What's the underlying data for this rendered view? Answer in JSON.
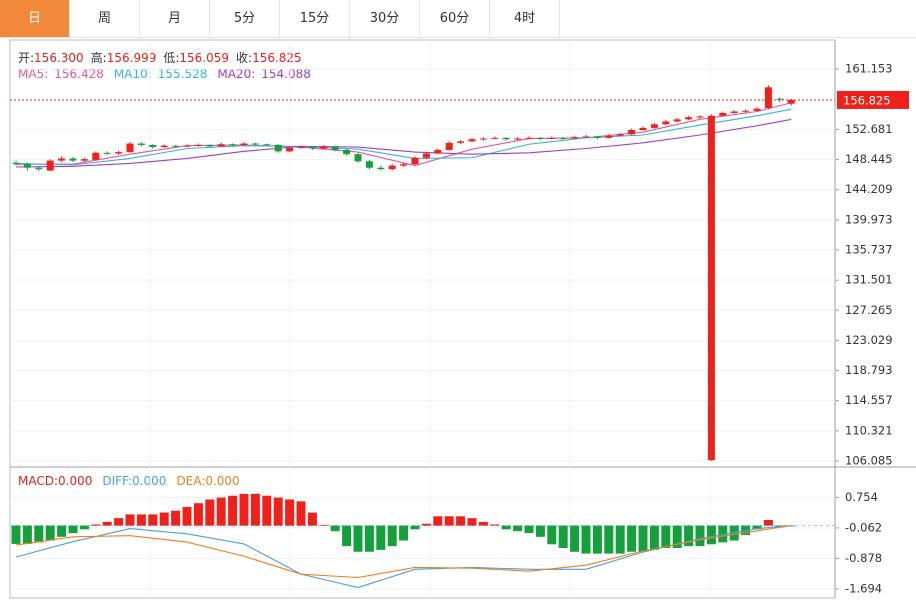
{
  "tabs": {
    "items": [
      "日",
      "周",
      "月",
      "5分",
      "15分",
      "30分",
      "60分",
      "4时"
    ],
    "active": 0
  },
  "chart_data": [
    {
      "type": "candlestick",
      "quote": [
        {
          "label": "开:",
          "value": "156.300"
        },
        {
          "label": "高:",
          "value": "156.999"
        },
        {
          "label": "低:",
          "value": "156.059"
        },
        {
          "label": "收:",
          "value": "156.825"
        }
      ],
      "quote_color": "#e8211a",
      "up_color": "#f0211a",
      "down_color": "#14a03a",
      "candles": [
        [
          148.0,
          148.3,
          147.6,
          147.8
        ],
        [
          147.8,
          148.0,
          146.9,
          147.3
        ],
        [
          147.3,
          147.5,
          146.8,
          147.1
        ],
        [
          146.9,
          148.5,
          146.8,
          148.3
        ],
        [
          148.3,
          148.9,
          148.1,
          148.6
        ],
        [
          148.6,
          148.8,
          148.1,
          148.3
        ],
        [
          148.3,
          148.7,
          148.1,
          148.5
        ],
        [
          148.4,
          149.6,
          148.3,
          149.4
        ],
        [
          149.4,
          149.6,
          149.1,
          149.3
        ],
        [
          149.3,
          149.7,
          149.1,
          149.5
        ],
        [
          149.5,
          150.9,
          149.4,
          150.7
        ],
        [
          150.7,
          150.9,
          150.3,
          150.5
        ],
        [
          150.5,
          150.6,
          150.0,
          150.2
        ],
        [
          150.2,
          150.6,
          150.1,
          150.4
        ],
        [
          150.4,
          150.5,
          150.1,
          150.3
        ],
        [
          150.3,
          150.6,
          150.2,
          150.4
        ],
        [
          150.4,
          150.7,
          150.3,
          150.5
        ],
        [
          150.5,
          150.6,
          150.2,
          150.3
        ],
        [
          150.3,
          150.8,
          150.2,
          150.6
        ],
        [
          150.6,
          150.7,
          150.3,
          150.5
        ],
        [
          150.5,
          150.9,
          150.4,
          150.7
        ],
        [
          150.7,
          150.8,
          150.4,
          150.6
        ],
        [
          150.6,
          150.7,
          150.3,
          150.5
        ],
        [
          150.5,
          150.6,
          149.4,
          149.6
        ],
        [
          149.6,
          150.3,
          149.5,
          150.1
        ],
        [
          150.1,
          150.4,
          150.0,
          150.2
        ],
        [
          150.2,
          150.3,
          149.8,
          150.0
        ],
        [
          150.0,
          150.5,
          149.9,
          150.3
        ],
        [
          150.3,
          150.4,
          149.6,
          149.8
        ],
        [
          149.8,
          150.0,
          149.0,
          149.2
        ],
        [
          149.2,
          149.4,
          148.0,
          148.2
        ],
        [
          148.2,
          148.4,
          147.1,
          147.3
        ],
        [
          147.3,
          147.6,
          146.9,
          147.1
        ],
        [
          147.1,
          147.8,
          146.9,
          147.6
        ],
        [
          147.6,
          148.0,
          147.4,
          147.8
        ],
        [
          147.8,
          148.9,
          147.7,
          148.7
        ],
        [
          148.7,
          149.5,
          148.5,
          149.3
        ],
        [
          149.3,
          150.0,
          149.2,
          149.8
        ],
        [
          149.8,
          151.0,
          149.7,
          150.8
        ],
        [
          150.8,
          151.2,
          150.6,
          151.0
        ],
        [
          151.0,
          151.5,
          150.9,
          151.3
        ],
        [
          151.3,
          151.6,
          151.1,
          151.4
        ],
        [
          151.4,
          151.7,
          151.3,
          151.5
        ],
        [
          151.5,
          151.6,
          151.1,
          151.3
        ],
        [
          151.3,
          151.6,
          151.2,
          151.4
        ],
        [
          151.4,
          151.7,
          151.3,
          151.5
        ],
        [
          151.5,
          151.6,
          151.2,
          151.4
        ],
        [
          151.4,
          151.7,
          151.3,
          151.5
        ],
        [
          151.5,
          151.6,
          151.2,
          151.4
        ],
        [
          151.4,
          151.8,
          151.3,
          151.6
        ],
        [
          151.6,
          151.9,
          151.5,
          151.7
        ],
        [
          151.7,
          151.8,
          151.3,
          151.5
        ],
        [
          151.5,
          152.0,
          151.4,
          151.8
        ],
        [
          151.8,
          152.2,
          151.7,
          152.0
        ],
        [
          152.0,
          152.8,
          151.9,
          152.6
        ],
        [
          152.6,
          153.1,
          152.5,
          152.9
        ],
        [
          152.9,
          153.6,
          152.8,
          153.4
        ],
        [
          153.4,
          154.0,
          153.3,
          153.8
        ],
        [
          153.8,
          154.3,
          153.7,
          154.1
        ],
        [
          154.1,
          154.6,
          154.0,
          154.4
        ],
        [
          154.4,
          154.7,
          154.2,
          154.5
        ],
        [
          106.2,
          154.8,
          106.1,
          154.6
        ],
        [
          154.6,
          155.2,
          154.5,
          155.0
        ],
        [
          155.0,
          155.4,
          154.9,
          155.2
        ],
        [
          155.2,
          155.5,
          155.0,
          155.3
        ],
        [
          155.3,
          155.8,
          155.2,
          155.6
        ],
        [
          155.7,
          158.9,
          155.5,
          158.6
        ],
        [
          157.0,
          157.2,
          156.5,
          156.9
        ],
        [
          156.3,
          156.999,
          156.059,
          156.825
        ]
      ],
      "series": [
        {
          "name": "MA5:",
          "value_label": "156.428",
          "color": "#e8559a",
          "x": [
            0,
            5,
            10,
            15,
            20,
            25,
            30,
            35,
            40,
            45,
            50,
            55,
            60,
            65,
            68
          ],
          "values": [
            147.8,
            147.8,
            149.2,
            150.4,
            150.5,
            150.2,
            149.5,
            147.6,
            149.9,
            151.4,
            151.5,
            152.3,
            154.1,
            155.2,
            156.428
          ]
        },
        {
          "name": "MA10:",
          "value_label": "155.528",
          "color": "#38b2d8",
          "x": [
            0,
            5,
            10,
            15,
            20,
            25,
            30,
            35,
            40,
            45,
            50,
            55,
            60,
            65,
            68
          ],
          "values": [
            147.9,
            147.7,
            148.6,
            150.0,
            150.4,
            150.3,
            149.9,
            148.6,
            148.7,
            150.6,
            151.5,
            151.9,
            153.3,
            154.6,
            155.528
          ]
        },
        {
          "name": "MA20:",
          "value_label": "154.088",
          "color": "#a03cc8",
          "x": [
            0,
            5,
            10,
            15,
            20,
            25,
            30,
            35,
            40,
            45,
            50,
            55,
            60,
            65,
            68
          ],
          "values": [
            147.4,
            147.5,
            147.9,
            148.6,
            149.6,
            150.3,
            150.2,
            149.5,
            149.2,
            149.4,
            150.0,
            150.8,
            151.9,
            153.2,
            154.088
          ]
        }
      ],
      "last_price": 156.825,
      "last_price_color": "#f0211a",
      "ylim": [
        105.24,
        165.25
      ],
      "yticks": [
        161.153,
        152.681,
        148.445,
        144.209,
        139.973,
        135.737,
        131.501,
        127.265,
        123.029,
        118.793,
        114.557,
        110.321,
        106.085
      ],
      "grid": true
    },
    {
      "type": "macd",
      "macd_label": {
        "name": "MACD:",
        "value_label": "0.000",
        "color": "#e8211a"
      },
      "histogram": {
        "up_color": "#f0211a",
        "down_color": "#14a03a",
        "values": [
          -0.49,
          -0.49,
          -0.45,
          -0.4,
          -0.3,
          -0.2,
          -0.1,
          0.03,
          0.1,
          0.2,
          0.3,
          0.3,
          0.3,
          0.35,
          0.4,
          0.5,
          0.6,
          0.7,
          0.75,
          0.8,
          0.85,
          0.85,
          0.8,
          0.75,
          0.7,
          0.65,
          0.35,
          0.02,
          -0.15,
          -0.55,
          -0.7,
          -0.7,
          -0.65,
          -0.55,
          -0.4,
          -0.1,
          0.05,
          0.25,
          0.25,
          0.25,
          0.2,
          0.1,
          0.03,
          -0.1,
          -0.15,
          -0.2,
          -0.3,
          -0.5,
          -0.6,
          -0.7,
          -0.75,
          -0.75,
          -0.75,
          -0.75,
          -0.7,
          -0.7,
          -0.65,
          -0.6,
          -0.6,
          -0.55,
          -0.55,
          -0.5,
          -0.45,
          -0.4,
          -0.25,
          -0.1,
          0.15,
          -0.05,
          -0.02
        ]
      },
      "series": [
        {
          "name": "DIFF:",
          "value_label": "0.000",
          "color": "#4a9fe0",
          "x": [
            0,
            5,
            10,
            15,
            20,
            25,
            30,
            35,
            40,
            45,
            50,
            55,
            60,
            65,
            68
          ],
          "values": [
            -0.84,
            -0.43,
            -0.08,
            -0.22,
            -0.49,
            -1.3,
            -1.66,
            -1.17,
            -1.12,
            -1.17,
            -1.17,
            -0.71,
            -0.35,
            -0.08,
            0
          ]
        },
        {
          "name": "DEA:",
          "value_label": "0.000",
          "color": "#f07f1a",
          "x": [
            0,
            5,
            10,
            15,
            20,
            25,
            30,
            35,
            40,
            45,
            50,
            55,
            60,
            65,
            68
          ],
          "values": [
            -0.52,
            -0.3,
            -0.27,
            -0.44,
            -0.82,
            -1.3,
            -1.39,
            -1.12,
            -1.14,
            -1.22,
            -1.06,
            -0.68,
            -0.38,
            -0.14,
            0
          ]
        }
      ],
      "ylim": [
        -1.939,
        1.543
      ],
      "yticks": [
        0.754,
        -0.062,
        -0.878,
        -1.694
      ],
      "grid": true
    }
  ]
}
